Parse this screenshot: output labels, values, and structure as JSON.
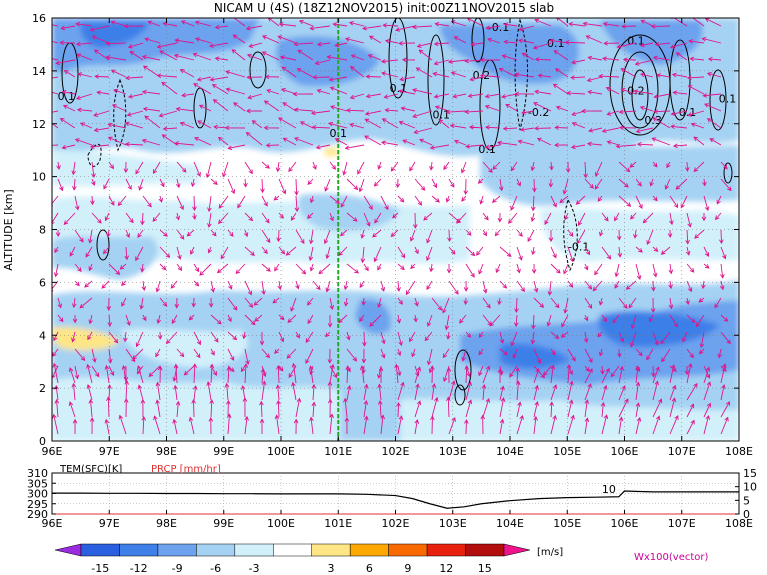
{
  "title": "NICAM U (4S) (18Z12NOV2015) init:00Z11NOV2015 slab",
  "colors": {
    "wind_vectors": "#e0148c",
    "line_101e": "#22aa22",
    "precip_line": "#e03030",
    "precip_label": "#e03030",
    "legend_unit_label": "#cc0099",
    "contour": "#000000"
  },
  "chart_data": [
    {
      "type": "heatmap",
      "name": "main_cross_section",
      "xlabel": "",
      "ylabel": "ALTITUDE [km]",
      "x_ticks": [
        "96E",
        "97E",
        "98E",
        "99E",
        "100E",
        "101E",
        "102E",
        "103E",
        "104E",
        "105E",
        "106E",
        "107E",
        "108E"
      ],
      "x_range": [
        96,
        108
      ],
      "y_ticks": [
        0,
        2,
        4,
        6,
        8,
        10,
        12,
        14,
        16
      ],
      "y_range": [
        0,
        16
      ],
      "grid": true,
      "reference_line_lon": 101,
      "contour_labels": [
        {
          "text": "0.1",
          "lon": 96.25,
          "alt": 12.9
        },
        {
          "text": "0.1",
          "lon": 101.0,
          "alt": 11.5
        },
        {
          "text": "0.1",
          "lon": 102.8,
          "alt": 12.2
        },
        {
          "text": "0.1",
          "lon": 103.6,
          "alt": 10.9
        },
        {
          "text": "0.2",
          "lon": 103.5,
          "alt": 13.7
        },
        {
          "text": "-0.2",
          "lon": 104.5,
          "alt": 12.3
        },
        {
          "text": "0.1",
          "lon": 104.8,
          "alt": 14.9
        },
        {
          "text": "0.1",
          "lon": 106.2,
          "alt": 15.0
        },
        {
          "text": "0.2",
          "lon": 106.2,
          "alt": 13.1
        },
        {
          "text": "0.3",
          "lon": 106.5,
          "alt": 12.0
        },
        {
          "text": "0.1",
          "lon": 107.1,
          "alt": 12.3
        },
        {
          "text": "0.1",
          "lon": 107.8,
          "alt": 12.8
        },
        {
          "text": "-0.1",
          "lon": 105.2,
          "alt": 7.2
        },
        {
          "text": "-0.1",
          "lon": 103.8,
          "alt": 15.5
        },
        {
          "text": "0.1",
          "lon": 102.05,
          "alt": 13.2
        }
      ]
    },
    {
      "type": "line",
      "name": "surface_panel",
      "series": [
        {
          "name": "TEM(SFC)[K]",
          "x": [
            96,
            96.5,
            97,
            97.5,
            98,
            98.5,
            99,
            99.5,
            100,
            100.5,
            101,
            101.5,
            102,
            102.3,
            102.6,
            102.9,
            103.2,
            103.5,
            104,
            104.5,
            105,
            105.5,
            105.9,
            106.0,
            106.5,
            107,
            107.5,
            108
          ],
          "y": [
            300.2,
            300.2,
            300.1,
            300.1,
            300.0,
            300.0,
            299.9,
            299.9,
            299.8,
            299.8,
            299.8,
            299.6,
            299.0,
            297.5,
            295.0,
            292.8,
            293.5,
            295.0,
            296.5,
            297.5,
            298.0,
            298.2,
            298.4,
            301.2,
            300.8,
            300.8,
            300.8,
            300.8
          ]
        },
        {
          "name": "PRCP [mm/hr]",
          "x": [
            96,
            108
          ],
          "y": [
            0,
            0
          ]
        }
      ],
      "left_axis_ticks": [
        290,
        295,
        300,
        305,
        310
      ],
      "left_axis_range": [
        290,
        310
      ],
      "right_axis_ticks": [
        0,
        5,
        10,
        15
      ],
      "right_axis_range": [
        0,
        15
      ],
      "x_ticks": [
        "96E",
        "97E",
        "98E",
        "99E",
        "100E",
        "101E",
        "102E",
        "103E",
        "104E",
        "105E",
        "106E",
        "107E",
        "108E"
      ],
      "annotation": {
        "text": "10",
        "lon": 105.85
      }
    }
  ],
  "colorbar": {
    "labels": [
      "-15",
      "-12",
      "-9",
      "-6",
      "-3",
      "3",
      "6",
      "9",
      "12",
      "15"
    ],
    "unit": "[m/s]",
    "colors": [
      "#9b2bde",
      "#2a5fe0",
      "#3e7fe8",
      "#6ca2ee",
      "#a5d2f3",
      "#d2f0fa",
      "#ffffff",
      "#fee686",
      "#fca800",
      "#f86a00",
      "#e8200e",
      "#b30e0e",
      "#f0148c"
    ]
  },
  "vector_label": "Wx100(vector)"
}
